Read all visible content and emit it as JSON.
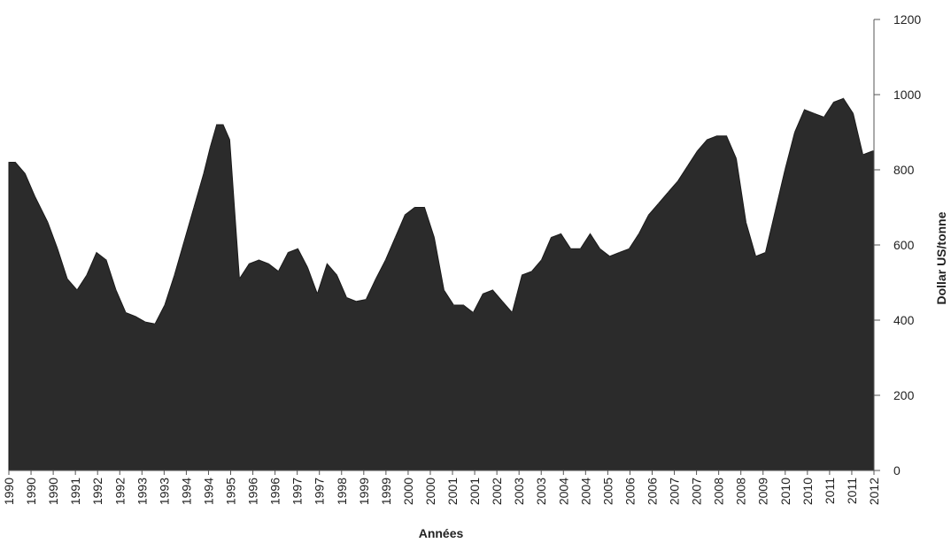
{
  "chart_data": {
    "type": "area",
    "xlabel": "Années",
    "ylabel": "Dollar US/tonne",
    "ylim": [
      0,
      1200
    ],
    "yticks": [
      0,
      200,
      400,
      600,
      800,
      1000,
      1200
    ],
    "y_axis_position": "right",
    "grid": false,
    "fill_color": "#2b2b2b",
    "x_tick_labels": [
      "1990",
      "1990",
      "1990",
      "1991",
      "1992",
      "1992",
      "1993",
      "1993",
      "1994",
      "1994",
      "1995",
      "1996",
      "1996",
      "1997",
      "1997",
      "1998",
      "1999",
      "1999",
      "2000",
      "2000",
      "2001",
      "2001",
      "2002",
      "2003",
      "2003",
      "2004",
      "2004",
      "2005",
      "2006",
      "2006",
      "2007",
      "2007",
      "2008",
      "2008",
      "2009",
      "2010",
      "2010",
      "2011",
      "2011",
      "2012"
    ],
    "x": [
      "1990-01",
      "1990-03",
      "1990-06",
      "1990-09",
      "1991-01",
      "1991-04",
      "1991-07",
      "1991-10",
      "1992-01",
      "1992-04",
      "1992-07",
      "1992-10",
      "1993-01",
      "1993-04",
      "1993-07",
      "1993-10",
      "1994-01",
      "1994-04",
      "1994-07",
      "1994-10",
      "1995-01",
      "1995-03",
      "1995-05",
      "1995-07",
      "1995-09",
      "1995-12",
      "1996-03",
      "1996-06",
      "1996-09",
      "1996-12",
      "1997-03",
      "1997-06",
      "1997-09",
      "1997-12",
      "1998-03",
      "1998-06",
      "1998-09",
      "1998-12",
      "1999-03",
      "1999-06",
      "1999-09",
      "1999-12",
      "2000-03",
      "2000-06",
      "2000-09",
      "2000-12",
      "2001-03",
      "2001-06",
      "2001-09",
      "2001-12",
      "2002-03",
      "2002-06",
      "2002-09",
      "2002-12",
      "2003-03",
      "2003-06",
      "2003-09",
      "2003-12",
      "2004-03",
      "2004-06",
      "2004-09",
      "2004-12",
      "2005-03",
      "2005-06",
      "2005-09",
      "2005-12",
      "2006-03",
      "2006-06",
      "2006-09",
      "2006-12",
      "2007-03",
      "2007-06",
      "2007-09",
      "2007-12",
      "2008-03",
      "2008-06",
      "2008-09",
      "2008-12",
      "2009-03",
      "2009-06",
      "2009-09",
      "2009-12",
      "2010-03",
      "2010-06",
      "2010-09",
      "2010-12",
      "2011-03",
      "2011-06",
      "2011-09",
      "2011-12",
      "2012-03"
    ],
    "series": [
      {
        "values": [
          820,
          820,
          790,
          730,
          660,
          590,
          510,
          480,
          520,
          580,
          560,
          480,
          420,
          410,
          395,
          390,
          440,
          520,
          610,
          700,
          790,
          860,
          920,
          920,
          880,
          510,
          550,
          560,
          550,
          530,
          580,
          590,
          540,
          470,
          550,
          520,
          460,
          450,
          455,
          510,
          560,
          620,
          680,
          700,
          700,
          620,
          480,
          440,
          440,
          420,
          470,
          480,
          450,
          420,
          520,
          530,
          560,
          620,
          630,
          590,
          590,
          630,
          590,
          570,
          580,
          590,
          630,
          680,
          710,
          740,
          770,
          810,
          850,
          880,
          890,
          890,
          830,
          660,
          570,
          580,
          690,
          800,
          900,
          960,
          950,
          940,
          980,
          990,
          950,
          840,
          850
        ]
      }
    ]
  }
}
